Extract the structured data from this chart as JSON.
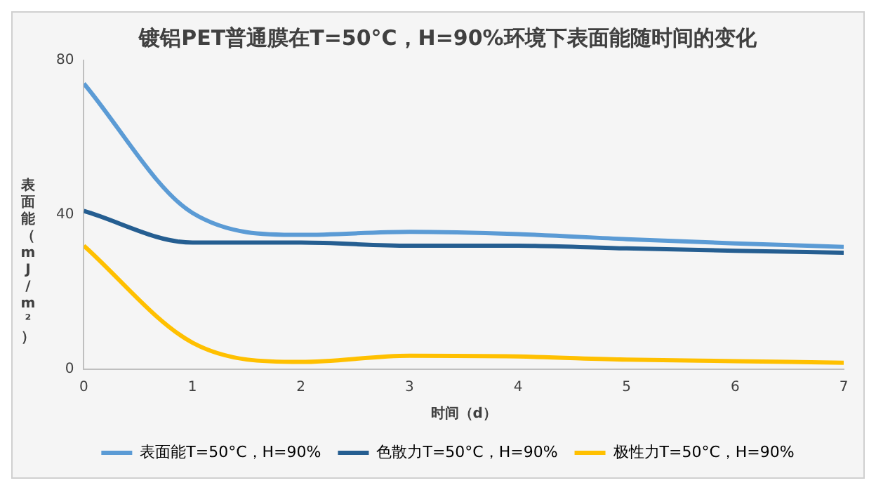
{
  "chart_data": {
    "type": "line",
    "title": "镀铝PET普通膜在T=50°C，H=90%环境下表面能随时间的变化",
    "xlabel": "时间（d）",
    "ylabel": "表面能（mJ/m²）",
    "x": [
      0,
      1,
      2,
      3,
      4,
      5,
      6,
      7
    ],
    "xlim": [
      0,
      7
    ],
    "xticks": [
      0,
      1,
      2,
      3,
      4,
      5,
      6,
      7
    ],
    "ylim": [
      0,
      80
    ],
    "yticks": [
      0,
      40,
      80
    ],
    "grid": false,
    "legend": "bottom",
    "marker": "none",
    "line_style": "solid",
    "series": [
      {
        "name": "表面能T=50°C，H=90%",
        "color": "#5b9bd5",
        "values": [
          74,
          40.5,
          34.8,
          35.6,
          35,
          33.7,
          32.6,
          31.7
        ]
      },
      {
        "name": "色散力T=50°C，H=90%",
        "color": "#255e91",
        "values": [
          41,
          32.8,
          32.8,
          32,
          32,
          31.3,
          30.7,
          30.2
        ]
      },
      {
        "name": "极性力T=50°C，H=90%",
        "color": "#ffc000",
        "values": [
          32,
          6.9,
          1.9,
          3.5,
          3.3,
          2.5,
          2.1,
          1.7
        ]
      }
    ]
  }
}
